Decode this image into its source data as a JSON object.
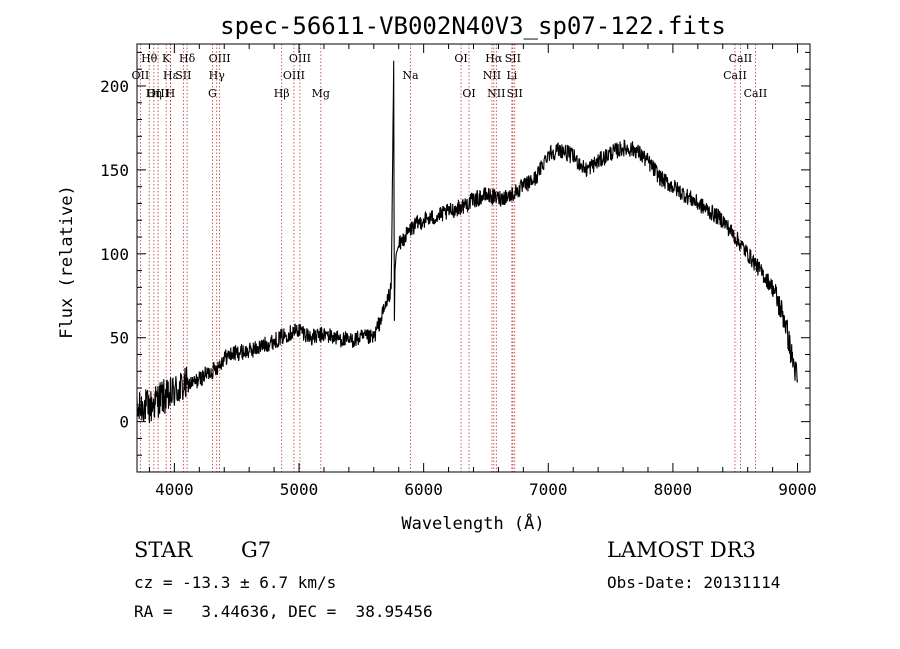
{
  "chart_data": {
    "type": "line",
    "title": "spec-56611-VB002N40V3_sp07-122.fits",
    "xlabel": "Wavelength (Å)",
    "ylabel": "Flux (relative)",
    "xlim": [
      3700,
      9100
    ],
    "ylim": [
      -30,
      225
    ],
    "xticks": [
      4000,
      5000,
      6000,
      7000,
      8000,
      9000
    ],
    "yticks": [
      0,
      50,
      100,
      150,
      200
    ],
    "grid": false,
    "series": [
      {
        "name": "spectrum",
        "color": "#000000",
        "x": [
          3700,
          3750,
          3800,
          3850,
          3900,
          3950,
          4000,
          4050,
          4100,
          4150,
          4200,
          4250,
          4300,
          4350,
          4400,
          4450,
          4500,
          4600,
          4700,
          4800,
          4900,
          5000,
          5100,
          5200,
          5300,
          5400,
          5500,
          5600,
          5700,
          5740,
          5760,
          5765,
          5770,
          5780,
          5800,
          5850,
          5900,
          5950,
          6000,
          6100,
          6200,
          6300,
          6400,
          6500,
          6600,
          6700,
          6800,
          6900,
          7000,
          7100,
          7200,
          7300,
          7400,
          7500,
          7600,
          7700,
          7800,
          7900,
          8000,
          8100,
          8200,
          8300,
          8400,
          8500,
          8600,
          8700,
          8800,
          8900,
          8950,
          9000
        ],
        "values": [
          5,
          10,
          8,
          12,
          15,
          14,
          18,
          20,
          22,
          23,
          25,
          28,
          30,
          33,
          38,
          40,
          41,
          42,
          45,
          48,
          52,
          55,
          50,
          52,
          50,
          48,
          50,
          50,
          70,
          80,
          215,
          60,
          90,
          100,
          105,
          110,
          115,
          118,
          120,
          122,
          125,
          128,
          132,
          135,
          133,
          135,
          140,
          145,
          160,
          162,
          158,
          150,
          155,
          160,
          163,
          162,
          155,
          145,
          140,
          135,
          130,
          125,
          120,
          110,
          100,
          90,
          80,
          60,
          40,
          25
        ]
      }
    ],
    "lines": [
      {
        "label": "Hθ",
        "wl": 3798,
        "row": 1
      },
      {
        "label": "OII",
        "wl": 3727,
        "row": 2
      },
      {
        "label": "OIII",
        "wl": 3869,
        "row": 3
      },
      {
        "label": "Hη",
        "wl": 3835,
        "row": 3
      },
      {
        "label": "K",
        "wl": 3934,
        "row": 1
      },
      {
        "label": "H",
        "wl": 3968,
        "row": 3
      },
      {
        "label": "Hε",
        "wl": 3970,
        "row": 2
      },
      {
        "label": "SII",
        "wl": 4072,
        "row": 2
      },
      {
        "label": "Hδ",
        "wl": 4102,
        "row": 1
      },
      {
        "label": "G",
        "wl": 4305,
        "row": 3
      },
      {
        "label": "Hγ",
        "wl": 4340,
        "row": 2
      },
      {
        "label": "OIII",
        "wl": 4363,
        "row": 1
      },
      {
        "label": "Hβ",
        "wl": 4861,
        "row": 3
      },
      {
        "label": "OIII",
        "wl": 4959,
        "row": 2
      },
      {
        "label": "OIII",
        "wl": 5007,
        "row": 1
      },
      {
        "label": "Mg",
        "wl": 5175,
        "row": 3
      },
      {
        "label": "Na",
        "wl": 5894,
        "row": 2
      },
      {
        "label": "OI",
        "wl": 6300,
        "row": 1
      },
      {
        "label": "OI",
        "wl": 6364,
        "row": 3
      },
      {
        "label": "NII",
        "wl": 6548,
        "row": 2
      },
      {
        "label": "Hα",
        "wl": 6563,
        "row": 1
      },
      {
        "label": "NII",
        "wl": 6583,
        "row": 3
      },
      {
        "label": "Li",
        "wl": 6708,
        "row": 2
      },
      {
        "label": "SII",
        "wl": 6716,
        "row": 1
      },
      {
        "label": "SII",
        "wl": 6731,
        "row": 3
      },
      {
        "label": "CaII",
        "wl": 8498,
        "row": 2
      },
      {
        "label": "CaII",
        "wl": 8542,
        "row": 1
      },
      {
        "label": "CaII",
        "wl": 8662,
        "row": 3
      }
    ],
    "line_color": "#c03030"
  },
  "info": {
    "class_label": "STAR",
    "subclass_label": "G7",
    "survey": "LAMOST DR3",
    "cz_text": "cz = -13.3 ± 6.7 km/s",
    "obs_date_text": "Obs-Date: 20131114",
    "radec_text": "RA =   3.44636, DEC =  38.95456"
  }
}
